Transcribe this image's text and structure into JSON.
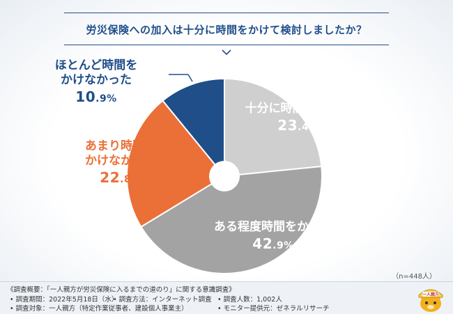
{
  "title": "労災保険への加入は十分に時間をかけて検討しましたか？",
  "chart_data": {
    "type": "pie",
    "categories": [
      "十分に時間をかけた",
      "ある程度時間をかけた",
      "あまり時間をかけなかった",
      "ほとんど時間をかけなかった"
    ],
    "values": [
      23.4,
      42.9,
      22.8,
      10.9
    ],
    "labels_display": [
      {
        "name_lines": [
          "十分に時間をかけた"
        ],
        "pct_int": "23",
        "pct_dec": ".4%"
      },
      {
        "name_lines": [
          "ある程度時間をかけた"
        ],
        "pct_int": "42",
        "pct_dec": ".9%"
      },
      {
        "name_lines": [
          "あまり時間を",
          "かけなかった"
        ],
        "pct_int": "22",
        "pct_dec": ".8%"
      },
      {
        "name_lines": [
          "ほとんど時間を",
          "かけなかった"
        ],
        "pct_int": "10",
        "pct_dec": ".9%"
      }
    ],
    "colors": [
      "#cfcfcf",
      "#a3a3a3",
      "#ea7038",
      "#1f4e89"
    ],
    "label_colors": [
      "#ffffff",
      "#ffffff",
      "#ea7038",
      "#1f4e89"
    ]
  },
  "sample_note": "（n=448人）",
  "footer": {
    "survey_title": "《調査概要：「一人親方が労災保険に入るまでの道のり」に関する意識調査》",
    "period": "• 調査期間：2022年5月18日（水）",
    "method": "• 調査方法：インターネット調査",
    "count": "• 調査人数：1,002人",
    "target": "• 調査対象：一人親方（特定作業従事者、建設個人事業主）",
    "provider": "• モニター提供元：ゼネラルリサーチ"
  },
  "logo_text": "一人親方",
  "colors": {
    "accent": "#1f4e89",
    "orange": "#ea7038"
  }
}
